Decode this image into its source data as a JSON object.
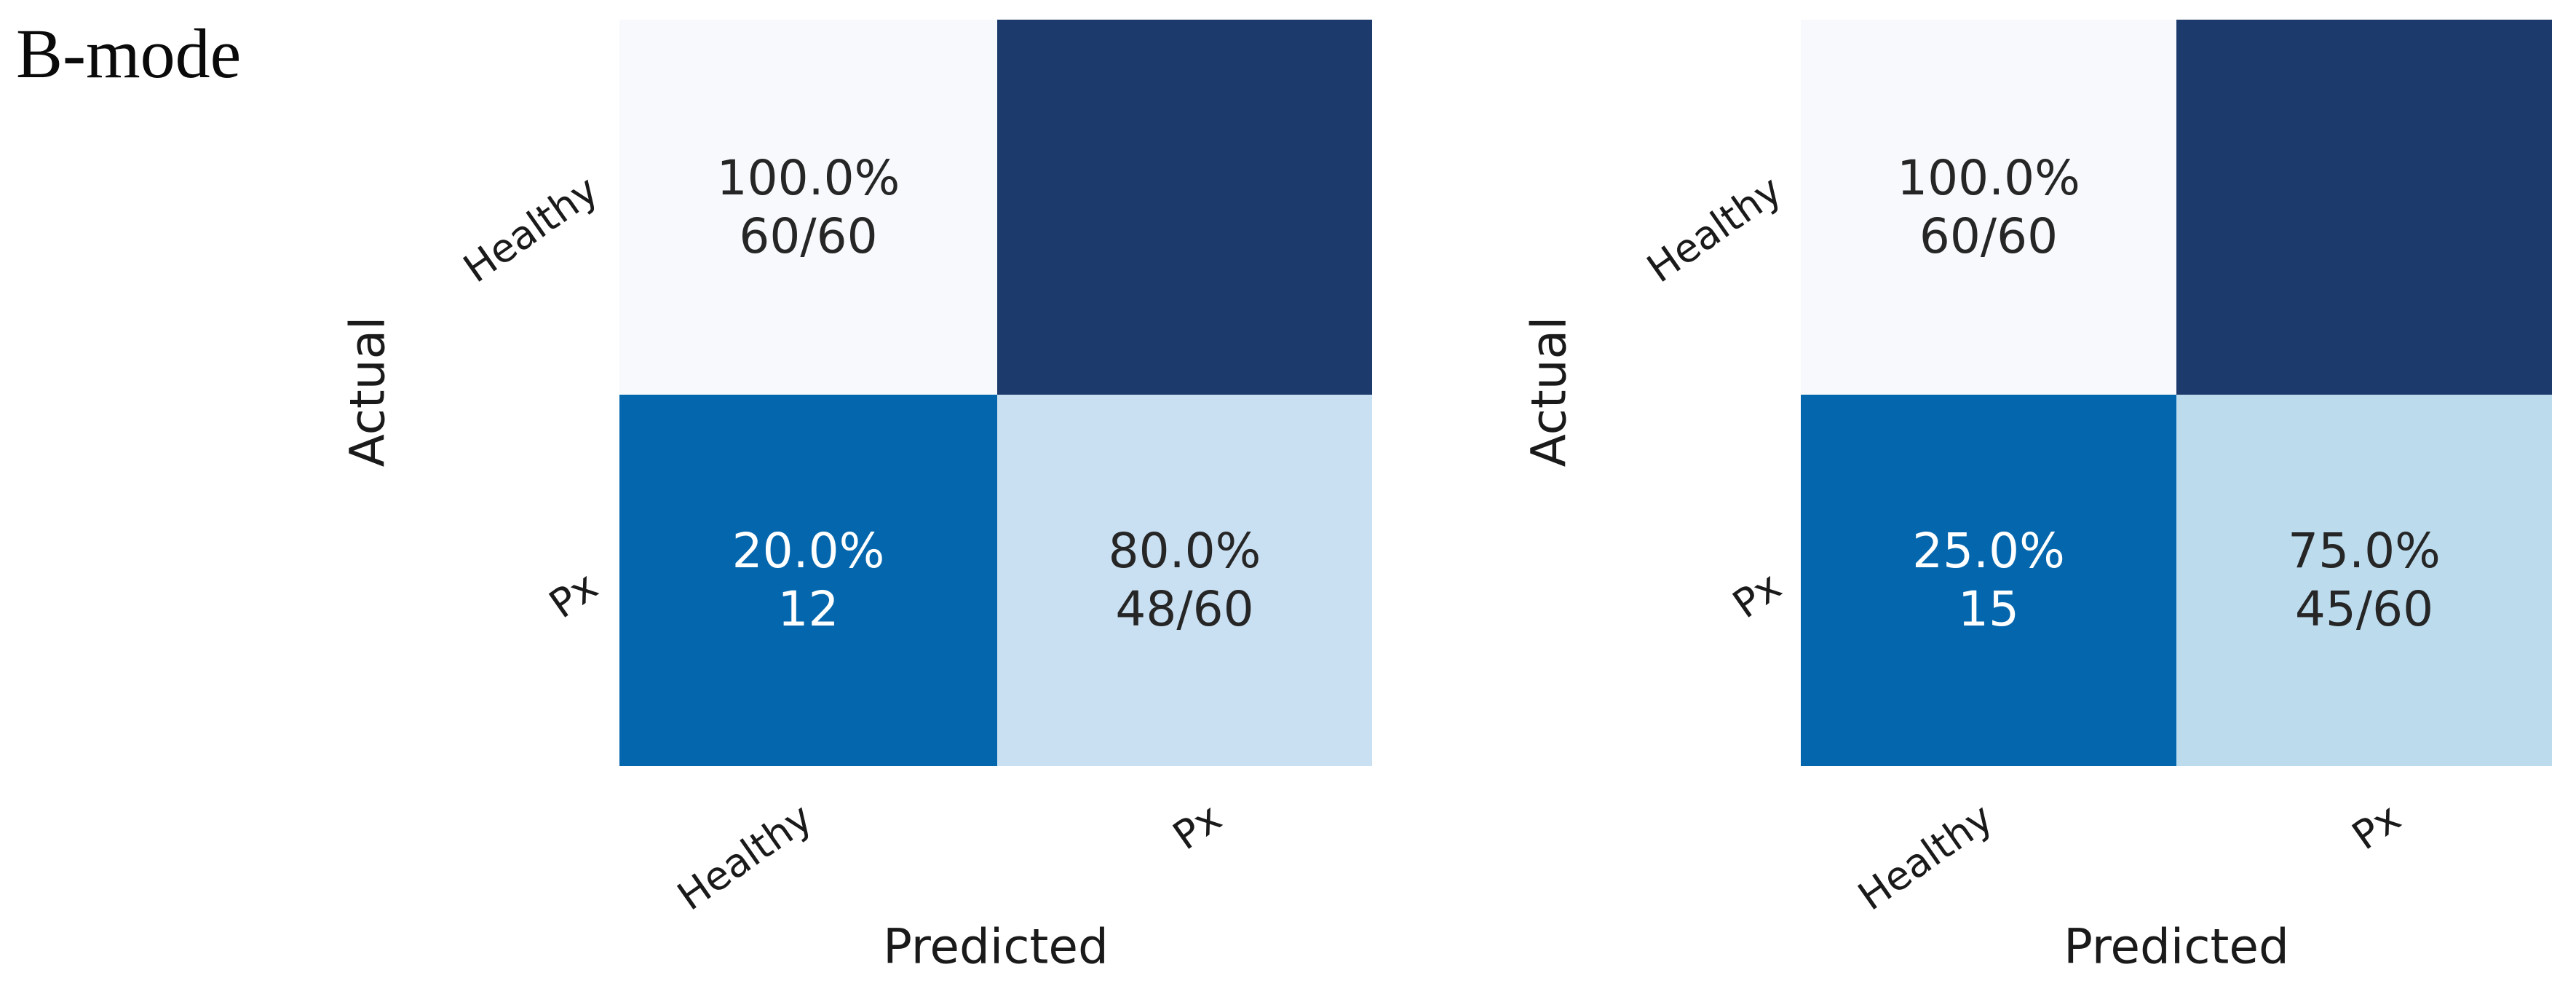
{
  "figure": {
    "label": "B-mode"
  },
  "colors": {
    "background": "#ffffff",
    "heat_min": "#f7f9fc",
    "heat_max": "#1c3a6b",
    "heat_strong_blue": "#0467ae",
    "heat_light_blue_left": "#c9e0f2",
    "heat_light_blue_right": "#bcdcee",
    "text_dark": "#262626",
    "text_light": "#ffffff"
  },
  "matrices": [
    {
      "id": "left",
      "x_label": "Predicted",
      "y_label": "Actual",
      "x_ticks": [
        "Healthy",
        "Px"
      ],
      "y_ticks": [
        "Healthy",
        "Px"
      ],
      "cells": [
        {
          "row": "Healthy",
          "col": "Healthy",
          "percent": "100.0%",
          "count": "60/60",
          "bg": "#f7f9fc",
          "fg": "#262626"
        },
        {
          "row": "Healthy",
          "col": "Px",
          "percent": "",
          "count": "",
          "bg": "#1c3a6b",
          "fg": "#ffffff"
        },
        {
          "row": "Px",
          "col": "Healthy",
          "percent": "20.0%",
          "count": "12",
          "bg": "#0467ae",
          "fg": "#ffffff"
        },
        {
          "row": "Px",
          "col": "Px",
          "percent": "80.0%",
          "count": "48/60",
          "bg": "#c9e0f2",
          "fg": "#262626"
        }
      ]
    },
    {
      "id": "right",
      "x_label": "Predicted",
      "y_label": "Actual",
      "x_ticks": [
        "Healthy",
        "Px"
      ],
      "y_ticks": [
        "Healthy",
        "Px"
      ],
      "cells": [
        {
          "row": "Healthy",
          "col": "Healthy",
          "percent": "100.0%",
          "count": "60/60",
          "bg": "#f7f9fc",
          "fg": "#262626"
        },
        {
          "row": "Healthy",
          "col": "Px",
          "percent": "",
          "count": "",
          "bg": "#1c3a6b",
          "fg": "#ffffff"
        },
        {
          "row": "Px",
          "col": "Healthy",
          "percent": "25.0%",
          "count": "15",
          "bg": "#0467ae",
          "fg": "#ffffff"
        },
        {
          "row": "Px",
          "col": "Px",
          "percent": "75.0%",
          "count": "45/60",
          "bg": "#bcdcee",
          "fg": "#262626"
        }
      ]
    }
  ],
  "chart_data": [
    {
      "type": "heatmap",
      "panel": "left",
      "title": "B-mode",
      "xlabel": "Predicted",
      "ylabel": "Actual",
      "x_categories": [
        "Healthy",
        "Px"
      ],
      "y_categories": [
        "Healthy",
        "Px"
      ],
      "values_percent": [
        [
          100.0,
          0.0
        ],
        [
          20.0,
          80.0
        ]
      ],
      "counts": [
        [
          60,
          0
        ],
        [
          12,
          48
        ]
      ],
      "row_totals": [
        60,
        60
      ],
      "annotations": [
        [
          "100.0%\n60/60",
          ""
        ],
        [
          "20.0%\n12",
          "80.0%\n48/60"
        ]
      ],
      "cell_colors": [
        [
          "#f7f9fc",
          "#1c3a6b"
        ],
        [
          "#0467ae",
          "#c9e0f2"
        ]
      ],
      "grid": false,
      "legend": false
    },
    {
      "type": "heatmap",
      "panel": "right",
      "title": "B-mode",
      "xlabel": "Predicted",
      "ylabel": "Actual",
      "x_categories": [
        "Healthy",
        "Px"
      ],
      "y_categories": [
        "Healthy",
        "Px"
      ],
      "values_percent": [
        [
          100.0,
          0.0
        ],
        [
          25.0,
          75.0
        ]
      ],
      "counts": [
        [
          60,
          0
        ],
        [
          15,
          45
        ]
      ],
      "row_totals": [
        60,
        60
      ],
      "annotations": [
        [
          "100.0%\n60/60",
          ""
        ],
        [
          "25.0%\n15",
          "75.0%\n45/60"
        ]
      ],
      "cell_colors": [
        [
          "#f7f9fc",
          "#1c3a6b"
        ],
        [
          "#0467ae",
          "#bcdcee"
        ]
      ],
      "grid": false,
      "legend": false
    }
  ]
}
